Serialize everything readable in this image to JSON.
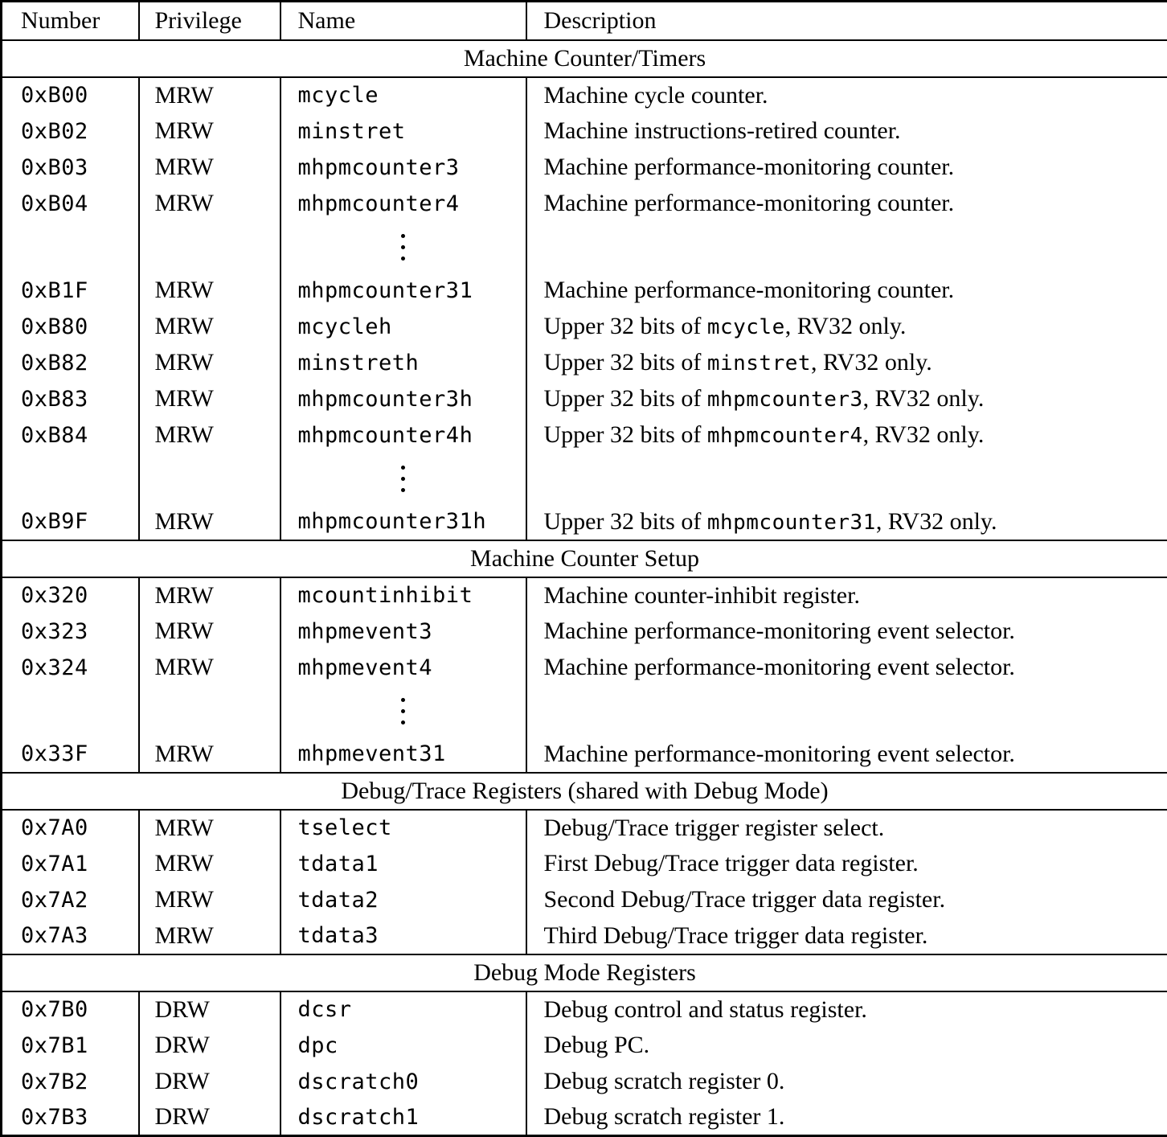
{
  "table": {
    "colors": {
      "border": "#000000",
      "text": "#000000",
      "background": "#ffffff"
    },
    "columns": [
      "Number",
      "Privilege",
      "Name",
      "Description"
    ],
    "sections": [
      {
        "title": "Machine Counter/Timers",
        "rows": [
          {
            "number": "0xB00",
            "privilege": "MRW",
            "name": "mcycle",
            "description": [
              {
                "text": "Machine cycle counter."
              }
            ]
          },
          {
            "number": "0xB02",
            "privilege": "MRW",
            "name": "minstret",
            "description": [
              {
                "text": "Machine instructions-retired counter."
              }
            ]
          },
          {
            "number": "0xB03",
            "privilege": "MRW",
            "name": "mhpmcounter3",
            "description": [
              {
                "text": "Machine performance-monitoring counter."
              }
            ]
          },
          {
            "number": "0xB04",
            "privilege": "MRW",
            "name": "mhpmcounter4",
            "description": [
              {
                "text": "Machine performance-monitoring counter."
              }
            ]
          },
          {
            "dots": true
          },
          {
            "number": "0xB1F",
            "privilege": "MRW",
            "name": "mhpmcounter31",
            "description": [
              {
                "text": "Machine performance-monitoring counter."
              }
            ]
          },
          {
            "number": "0xB80",
            "privilege": "MRW",
            "name": "mcycleh",
            "description": [
              {
                "text": "Upper 32 bits of "
              },
              {
                "text": "mcycle",
                "mono": true
              },
              {
                "text": ", RV32 only."
              }
            ]
          },
          {
            "number": "0xB82",
            "privilege": "MRW",
            "name": "minstreth",
            "description": [
              {
                "text": "Upper 32 bits of "
              },
              {
                "text": "minstret",
                "mono": true
              },
              {
                "text": ", RV32 only."
              }
            ]
          },
          {
            "number": "0xB83",
            "privilege": "MRW",
            "name": "mhpmcounter3h",
            "description": [
              {
                "text": "Upper 32 bits of "
              },
              {
                "text": "mhpmcounter3",
                "mono": true
              },
              {
                "text": ", RV32 only."
              }
            ]
          },
          {
            "number": "0xB84",
            "privilege": "MRW",
            "name": "mhpmcounter4h",
            "description": [
              {
                "text": "Upper 32 bits of "
              },
              {
                "text": "mhpmcounter4",
                "mono": true
              },
              {
                "text": ", RV32 only."
              }
            ]
          },
          {
            "dots": true
          },
          {
            "number": "0xB9F",
            "privilege": "MRW",
            "name": "mhpmcounter31h",
            "description": [
              {
                "text": "Upper 32 bits of "
              },
              {
                "text": "mhpmcounter31",
                "mono": true
              },
              {
                "text": ", RV32 only."
              }
            ]
          }
        ]
      },
      {
        "title": "Machine Counter Setup",
        "rows": [
          {
            "number": "0x320",
            "privilege": "MRW",
            "name": "mcountinhibit",
            "description": [
              {
                "text": "Machine counter-inhibit register."
              }
            ]
          },
          {
            "number": "0x323",
            "privilege": "MRW",
            "name": "mhpmevent3",
            "description": [
              {
                "text": "Machine performance-monitoring event selector."
              }
            ]
          },
          {
            "number": "0x324",
            "privilege": "MRW",
            "name": "mhpmevent4",
            "description": [
              {
                "text": "Machine performance-monitoring event selector."
              }
            ]
          },
          {
            "dots": true
          },
          {
            "number": "0x33F",
            "privilege": "MRW",
            "name": "mhpmevent31",
            "description": [
              {
                "text": "Machine performance-monitoring event selector."
              }
            ]
          }
        ]
      },
      {
        "title": "Debug/Trace Registers (shared with Debug Mode)",
        "rows": [
          {
            "number": "0x7A0",
            "privilege": "MRW",
            "name": "tselect",
            "description": [
              {
                "text": "Debug/Trace trigger register select."
              }
            ]
          },
          {
            "number": "0x7A1",
            "privilege": "MRW",
            "name": "tdata1",
            "description": [
              {
                "text": "First Debug/Trace trigger data register."
              }
            ]
          },
          {
            "number": "0x7A2",
            "privilege": "MRW",
            "name": "tdata2",
            "description": [
              {
                "text": "Second Debug/Trace trigger data register."
              }
            ]
          },
          {
            "number": "0x7A3",
            "privilege": "MRW",
            "name": "tdata3",
            "description": [
              {
                "text": "Third Debug/Trace trigger data register."
              }
            ]
          }
        ]
      },
      {
        "title": "Debug Mode Registers",
        "rows": [
          {
            "number": "0x7B0",
            "privilege": "DRW",
            "name": "dcsr",
            "description": [
              {
                "text": "Debug control and status register."
              }
            ]
          },
          {
            "number": "0x7B1",
            "privilege": "DRW",
            "name": "dpc",
            "description": [
              {
                "text": "Debug PC."
              }
            ]
          },
          {
            "number": "0x7B2",
            "privilege": "DRW",
            "name": "dscratch0",
            "description": [
              {
                "text": "Debug scratch register 0."
              }
            ]
          },
          {
            "number": "0x7B3",
            "privilege": "DRW",
            "name": "dscratch1",
            "description": [
              {
                "text": "Debug scratch register 1."
              }
            ]
          }
        ]
      }
    ]
  }
}
